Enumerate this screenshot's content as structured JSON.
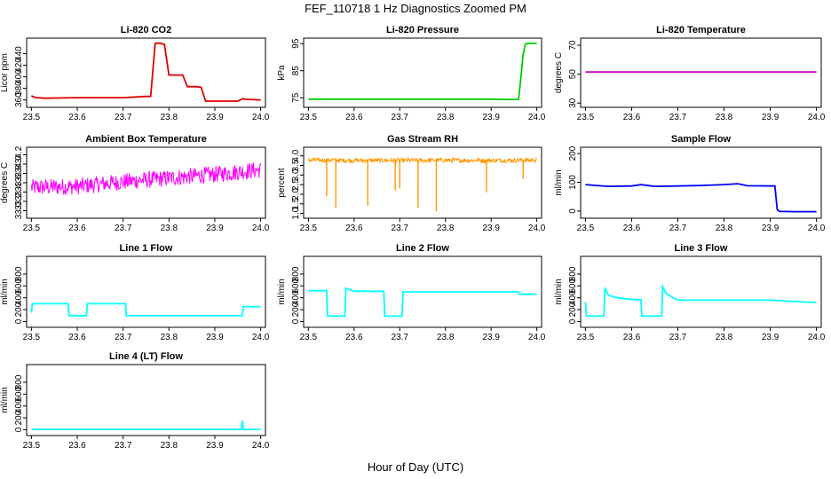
{
  "figure": {
    "title": "FEF_110718  1 Hz Diagnostics Zoomed PM",
    "xlabel": "Hour of Day (UTC)"
  },
  "chart_data": [
    {
      "type": "line",
      "title": "Li-820 CO2",
      "ylabel": "Licor ppm",
      "color": "#e00000",
      "xlim": [
        23.5,
        24.0
      ],
      "ylim": [
        352,
        462
      ],
      "yticks": [
        "360",
        "380",
        "400",
        "420",
        "440"
      ],
      "xticks": [
        "23.5",
        "23.6",
        "23.7",
        "23.8",
        "23.9",
        "24.0"
      ],
      "series": [
        {
          "x": [
            23.5,
            23.51,
            23.53,
            23.6,
            23.65,
            23.7,
            23.75,
            23.76,
            23.77,
            23.78,
            23.79,
            23.8,
            23.82,
            23.83,
            23.84,
            23.86,
            23.87,
            23.88,
            23.9,
            23.95,
            23.96,
            23.97,
            24.0
          ],
          "y": [
            367,
            364,
            363,
            364,
            364,
            364,
            366,
            366,
            458,
            458,
            456,
            403,
            403,
            403,
            383,
            383,
            382,
            358,
            358,
            358,
            362,
            361,
            360
          ]
        }
      ]
    },
    {
      "type": "line",
      "title": "Li-820 Pressure",
      "ylabel": "kPa",
      "color": "#00cc00",
      "xlim": [
        23.5,
        24.0
      ],
      "ylim": [
        72.5,
        96
      ],
      "yticks": [
        "75",
        "85",
        "95"
      ],
      "xticks": [
        "23.5",
        "23.6",
        "23.7",
        "23.8",
        "23.9",
        "24.0"
      ],
      "series": [
        {
          "x": [
            23.5,
            23.6,
            23.7,
            23.8,
            23.9,
            23.94,
            23.95,
            23.96,
            23.965,
            23.97,
            23.975,
            23.98,
            24.0
          ],
          "y": [
            74.5,
            74.5,
            74.5,
            74.5,
            74.5,
            74.4,
            74.4,
            74.4,
            82,
            91,
            94.8,
            95.1,
            95.1
          ]
        }
      ]
    },
    {
      "type": "line",
      "title": "Li-820 Temperature",
      "ylabel": "degrees C",
      "color": "#cc00cc",
      "xlim": [
        23.5,
        24.0
      ],
      "ylim": [
        29,
        73
      ],
      "yticks": [
        "30",
        "50",
        "70"
      ],
      "xticks": [
        "23.5",
        "23.6",
        "23.7",
        "23.8",
        "23.9",
        "24.0"
      ],
      "series": [
        {
          "x": [
            23.5,
            24.0
          ],
          "y": [
            51.5,
            51.5
          ]
        }
      ]
    },
    {
      "type": "line",
      "title": "Ambient Box Temperature",
      "ylabel": "degrees C",
      "color": "#ff00ff",
      "noise": 0.18,
      "xlim": [
        23.5,
        24.0
      ],
      "ylim": [
        32.9,
        34.3
      ],
      "yticks": [
        "33.0",
        "33.2",
        "33.4",
        "33.6",
        "33.8",
        "34.0",
        "34.2"
      ],
      "xticks": [
        "23.5",
        "23.6",
        "23.7",
        "23.8",
        "23.9",
        "24.0"
      ],
      "series": [
        {
          "x": [
            23.5,
            23.6,
            23.7,
            23.8,
            23.9,
            24.0
          ],
          "y": [
            33.5,
            33.52,
            33.62,
            33.7,
            33.78,
            33.88
          ]
        }
      ]
    },
    {
      "type": "line",
      "title": "Gas Stream RH",
      "ylabel": "percent",
      "color": "#ff9900",
      "noise": 0.12,
      "xlim": [
        23.5,
        24.0
      ],
      "ylim": [
        0.9,
        4.3
      ],
      "yticks": [
        "1.0",
        "1.5",
        "2.0",
        "2.5",
        "3.0",
        "3.5",
        "4.0"
      ],
      "xticks": [
        "23.5",
        "23.6",
        "23.7",
        "23.8",
        "23.9",
        "24.0"
      ],
      "series": [
        {
          "x": [
            23.5,
            23.6,
            23.7,
            23.8,
            23.9,
            24.0
          ],
          "y": [
            3.78,
            3.76,
            3.76,
            3.77,
            3.76,
            3.78
          ]
        }
      ],
      "dips_x": [
        23.54,
        23.56,
        23.63,
        23.69,
        23.7,
        23.74,
        23.78,
        23.89,
        23.97
      ],
      "dips_y": [
        1.9,
        1.3,
        1.4,
        2.2,
        2.3,
        1.3,
        1.1,
        2.1,
        2.8
      ]
    },
    {
      "type": "line",
      "title": "Sample Flow",
      "ylabel": "ml/min",
      "color": "#0000ff",
      "xlim": [
        23.5,
        24.0
      ],
      "ylim": [
        -15,
        212
      ],
      "yticks": [
        "0",
        "100",
        "200"
      ],
      "xticks": [
        "23.5",
        "23.6",
        "23.7",
        "23.8",
        "23.9",
        "24.0"
      ],
      "series": [
        {
          "x": [
            23.5,
            23.53,
            23.55,
            23.6,
            23.62,
            23.63,
            23.65,
            23.7,
            23.75,
            23.8,
            23.83,
            23.85,
            23.91,
            23.915,
            23.92,
            23.95,
            24.0
          ],
          "y": [
            92,
            88,
            86,
            87,
            92,
            90,
            86,
            87,
            89,
            92,
            95,
            88,
            87,
            5,
            -1,
            -2,
            -2
          ]
        }
      ]
    },
    {
      "type": "line",
      "title": "Line 1 Flow",
      "ylabel": "ml/min",
      "color": "#00ffff",
      "xlim": [
        23.5,
        24.0
      ],
      "ylim": [
        -50,
        1050
      ],
      "yticks": [
        "0",
        "200",
        "400",
        "600",
        "800"
      ],
      "xticks": [
        "23.5",
        "23.6",
        "23.7",
        "23.8",
        "23.9",
        "24.0"
      ],
      "series": [
        {
          "x": [
            23.5,
            23.502,
            23.58,
            23.582,
            23.62,
            23.622,
            23.705,
            23.707,
            23.96,
            23.962,
            24.0
          ],
          "y": [
            150,
            300,
            300,
            100,
            100,
            300,
            300,
            100,
            100,
            250,
            250
          ]
        }
      ]
    },
    {
      "type": "line",
      "title": "Line 2 Flow",
      "ylabel": "ml/min",
      "color": "#00ffff",
      "xlim": [
        23.5,
        24.0
      ],
      "ylim": [
        -50,
        1050
      ],
      "yticks": [
        "0",
        "200",
        "400",
        "600",
        "800"
      ],
      "xticks": [
        "23.5",
        "23.6",
        "23.7",
        "23.8",
        "23.9",
        "24.0"
      ],
      "series": [
        {
          "x": [
            23.5,
            23.54,
            23.542,
            23.58,
            23.582,
            23.6,
            23.665,
            23.667,
            23.705,
            23.707,
            23.8,
            23.96,
            23.962,
            24.0
          ],
          "y": [
            520,
            520,
            90,
            90,
            560,
            510,
            510,
            90,
            90,
            500,
            500,
            500,
            460,
            460
          ]
        }
      ]
    },
    {
      "type": "line",
      "title": "Line 3 Flow",
      "ylabel": "ml/min",
      "color": "#00ffff",
      "xlim": [
        23.5,
        24.0
      ],
      "ylim": [
        -50,
        1050
      ],
      "yticks": [
        "0",
        "200",
        "400",
        "600",
        "800"
      ],
      "xticks": [
        "23.5",
        "23.6",
        "23.7",
        "23.8",
        "23.9",
        "24.0"
      ],
      "series": [
        {
          "x": [
            23.5,
            23.502,
            23.54,
            23.542,
            23.55,
            23.57,
            23.6,
            23.62,
            23.622,
            23.665,
            23.667,
            23.675,
            23.69,
            23.7,
            23.8,
            23.9,
            23.97,
            24.0
          ],
          "y": [
            330,
            90,
            90,
            570,
            440,
            400,
            370,
            370,
            90,
            90,
            590,
            470,
            400,
            360,
            360,
            360,
            330,
            320
          ]
        }
      ]
    },
    {
      "type": "line",
      "title": "Line 4 (LT) Flow",
      "ylabel": "ml/min",
      "color": "#00ffff",
      "xlim": [
        23.5,
        24.0
      ],
      "ylim": [
        -50,
        1050
      ],
      "yticks": [
        "0",
        "200",
        "400",
        "600",
        "800"
      ],
      "xticks": [
        "23.5",
        "23.6",
        "23.7",
        "23.8",
        "23.9",
        "24.0"
      ],
      "series": [
        {
          "x": [
            23.5,
            23.7,
            23.9,
            23.958,
            23.96,
            23.962,
            24.0
          ],
          "y": [
            5,
            5,
            5,
            5,
            150,
            5,
            5
          ]
        }
      ]
    }
  ]
}
